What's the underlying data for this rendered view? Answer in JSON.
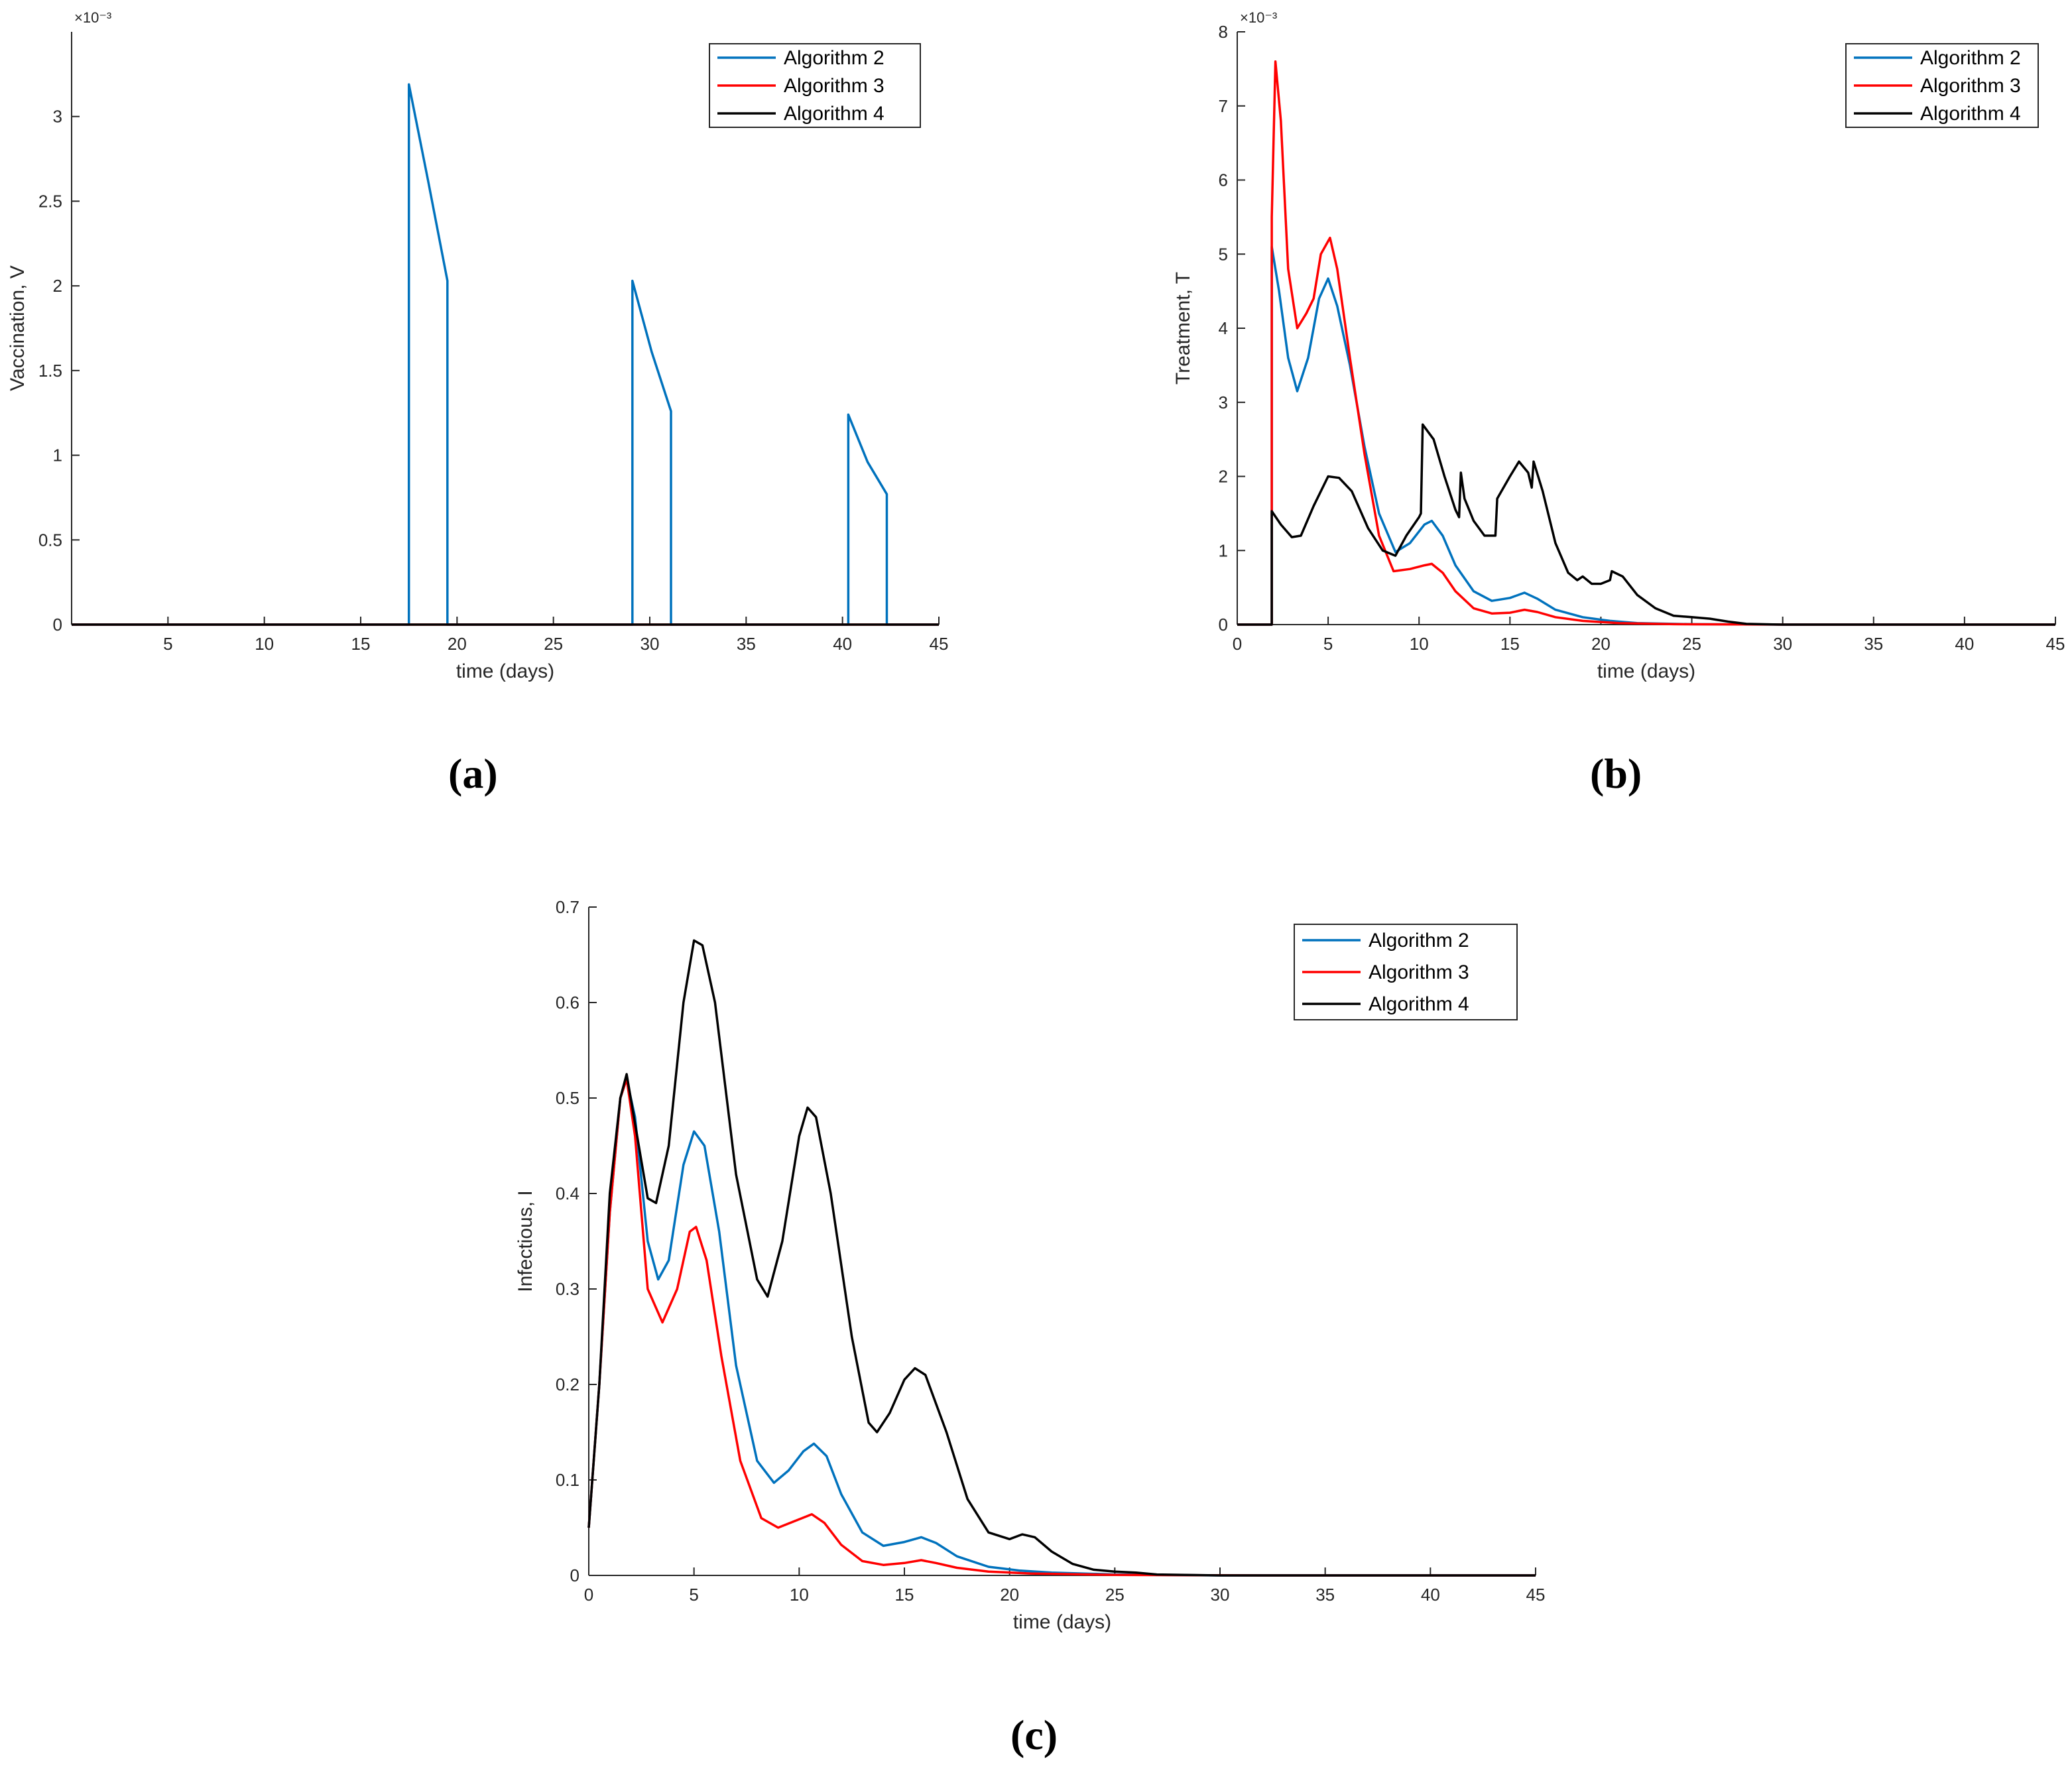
{
  "panel_labels": [
    "(a)",
    "(b)",
    "(c)"
  ],
  "colors": {
    "algorithm_2": "#0072BD",
    "algorithm_3": "#FF0000",
    "algorithm_4": "#000000",
    "axis": "#262626"
  },
  "chart_data": [
    {
      "id": "a",
      "type": "line",
      "xlabel": "time (days)",
      "ylabel": "Vaccination, V",
      "y_exponent": "×10⁻³",
      "xlim": [
        0,
        45
      ],
      "ylim": [
        0,
        0.0035
      ],
      "xticks": [
        5,
        10,
        15,
        20,
        25,
        30,
        35,
        40,
        45
      ],
      "yticks": [
        0,
        0.0005,
        0.001,
        0.0015,
        0.002,
        0.0025,
        0.003
      ],
      "ytick_labels": [
        "0",
        "0.5",
        "1",
        "1.5",
        "2",
        "2.5",
        "3"
      ],
      "legend_position": "top-right",
      "series": [
        {
          "name": "Algorithm 2",
          "color": "#0072BD",
          "points": [
            [
              0,
              0
            ],
            [
              17.5,
              0
            ],
            [
              17.5,
              0.00319
            ],
            [
              18.5,
              0.00262
            ],
            [
              19.5,
              0.00203
            ],
            [
              19.5,
              0
            ],
            [
              29.1,
              0
            ],
            [
              29.1,
              0.00203
            ],
            [
              30.1,
              0.00161
            ],
            [
              31.1,
              0.00126
            ],
            [
              31.1,
              0
            ],
            [
              40.3,
              0
            ],
            [
              40.3,
              0.00124
            ],
            [
              41.3,
              0.00096
            ],
            [
              42.3,
              0.00077
            ],
            [
              42.3,
              0
            ],
            [
              45,
              0
            ]
          ]
        },
        {
          "name": "Algorithm 3",
          "color": "#FF0000",
          "points": [
            [
              0,
              0
            ],
            [
              45,
              0
            ]
          ]
        },
        {
          "name": "Algorithm 4",
          "color": "#000000",
          "points": [
            [
              0,
              0
            ],
            [
              45,
              0
            ]
          ]
        }
      ]
    },
    {
      "id": "b",
      "type": "line",
      "xlabel": "time (days)",
      "ylabel": "Treatment, T",
      "y_exponent": "×10⁻³",
      "xlim": [
        0,
        45
      ],
      "ylim": [
        0,
        0.008
      ],
      "xticks": [
        0,
        5,
        10,
        15,
        20,
        25,
        30,
        35,
        40,
        45
      ],
      "yticks": [
        0,
        0.001,
        0.002,
        0.003,
        0.004,
        0.005,
        0.006,
        0.007,
        0.008
      ],
      "ytick_labels": [
        "0",
        "1",
        "2",
        "3",
        "4",
        "5",
        "6",
        "7",
        "8"
      ],
      "legend_position": "top-right",
      "series": [
        {
          "name": "Algorithm 2",
          "color": "#0072BD",
          "points": [
            [
              0,
              0
            ],
            [
              1.9,
              0
            ],
            [
              1.9,
              0.0051
            ],
            [
              2.3,
              0.0045
            ],
            [
              2.8,
              0.0036
            ],
            [
              3.3,
              0.00315
            ],
            [
              3.9,
              0.0036
            ],
            [
              4.5,
              0.0044
            ],
            [
              5.0,
              0.00467
            ],
            [
              5.5,
              0.0043
            ],
            [
              6.2,
              0.0035
            ],
            [
              7.0,
              0.0024
            ],
            [
              7.8,
              0.0015
            ],
            [
              8.7,
              0.00098
            ],
            [
              9.5,
              0.0011
            ],
            [
              10.3,
              0.00135
            ],
            [
              10.7,
              0.0014
            ],
            [
              11.3,
              0.0012
            ],
            [
              12.0,
              0.0008
            ],
            [
              13.0,
              0.00045
            ],
            [
              14.0,
              0.00032
            ],
            [
              15.0,
              0.00036
            ],
            [
              15.8,
              0.00043
            ],
            [
              16.5,
              0.00035
            ],
            [
              17.5,
              0.0002
            ],
            [
              19.0,
              0.0001
            ],
            [
              20.5,
              5e-05
            ],
            [
              22,
              2e-05
            ],
            [
              25,
              5e-06
            ],
            [
              30,
              0
            ],
            [
              45,
              0
            ]
          ]
        },
        {
          "name": "Algorithm 3",
          "color": "#FF0000",
          "points": [
            [
              0,
              0
            ],
            [
              1.9,
              0
            ],
            [
              1.9,
              0.0055
            ],
            [
              2.1,
              0.0076
            ],
            [
              2.4,
              0.0068
            ],
            [
              2.8,
              0.0048
            ],
            [
              3.3,
              0.004
            ],
            [
              3.8,
              0.0042
            ],
            [
              4.2,
              0.0044
            ],
            [
              4.6,
              0.005
            ],
            [
              5.1,
              0.00522
            ],
            [
              5.5,
              0.0048
            ],
            [
              6.2,
              0.0036
            ],
            [
              7.0,
              0.0023
            ],
            [
              7.8,
              0.0012
            ],
            [
              8.6,
              0.00072
            ],
            [
              9.5,
              0.00075
            ],
            [
              10.3,
              0.0008
            ],
            [
              10.7,
              0.00082
            ],
            [
              11.3,
              0.0007
            ],
            [
              12.0,
              0.00045
            ],
            [
              13.0,
              0.00022
            ],
            [
              14.0,
              0.00015
            ],
            [
              15.0,
              0.00016
            ],
            [
              15.8,
              0.0002
            ],
            [
              16.5,
              0.00017
            ],
            [
              17.5,
              0.0001
            ],
            [
              19.0,
              5e-05
            ],
            [
              21,
              2e-05
            ],
            [
              24,
              5e-06
            ],
            [
              30,
              0
            ],
            [
              45,
              0
            ]
          ]
        },
        {
          "name": "Algorithm 4",
          "color": "#000000",
          "points": [
            [
              0,
              0
            ],
            [
              1.9,
              0
            ],
            [
              1.9,
              0.00153
            ],
            [
              2.4,
              0.00135
            ],
            [
              3.0,
              0.00118
            ],
            [
              3.5,
              0.0012
            ],
            [
              4.2,
              0.0016
            ],
            [
              5.0,
              0.002
            ],
            [
              5.6,
              0.00198
            ],
            [
              6.3,
              0.0018
            ],
            [
              7.2,
              0.0013
            ],
            [
              8.0,
              0.001
            ],
            [
              8.7,
              0.00093
            ],
            [
              9.3,
              0.0012
            ],
            [
              10.0,
              0.00145
            ],
            [
              10.1,
              0.0015
            ],
            [
              10.2,
              0.0027
            ],
            [
              10.8,
              0.0025
            ],
            [
              11.4,
              0.002
            ],
            [
              12.0,
              0.00155
            ],
            [
              12.2,
              0.00145
            ],
            [
              12.3,
              0.00205
            ],
            [
              12.5,
              0.0017
            ],
            [
              13.0,
              0.0014
            ],
            [
              13.6,
              0.0012
            ],
            [
              14.2,
              0.0012
            ],
            [
              14.3,
              0.0017
            ],
            [
              15.0,
              0.002
            ],
            [
              15.5,
              0.0022
            ],
            [
              16.0,
              0.00205
            ],
            [
              16.2,
              0.00185
            ],
            [
              16.3,
              0.0022
            ],
            [
              16.8,
              0.0018
            ],
            [
              17.5,
              0.0011
            ],
            [
              18.2,
              0.0007
            ],
            [
              18.7,
              0.0006
            ],
            [
              19.0,
              0.00065
            ],
            [
              19.5,
              0.00055
            ],
            [
              20.0,
              0.00055
            ],
            [
              20.5,
              0.0006
            ],
            [
              20.6,
              0.00072
            ],
            [
              21.2,
              0.00065
            ],
            [
              22,
              0.0004
            ],
            [
              23,
              0.00022
            ],
            [
              24,
              0.00012
            ],
            [
              25,
              0.0001
            ],
            [
              26,
              8e-05
            ],
            [
              27,
              4e-05
            ],
            [
              28,
              1e-05
            ],
            [
              30,
              0
            ],
            [
              45,
              0
            ]
          ]
        }
      ]
    },
    {
      "id": "c",
      "type": "line",
      "xlabel": "time (days)",
      "ylabel": "Infectious, I",
      "xlim": [
        0,
        45
      ],
      "ylim": [
        0,
        0.7
      ],
      "xticks": [
        0,
        5,
        10,
        15,
        20,
        25,
        30,
        35,
        40,
        45
      ],
      "yticks": [
        0,
        0.1,
        0.2,
        0.3,
        0.4,
        0.5,
        0.6,
        0.7
      ],
      "ytick_labels": [
        "0",
        "0.1",
        "0.2",
        "0.3",
        "0.4",
        "0.5",
        "0.6",
        "0.7"
      ],
      "legend_position": "top-right",
      "series": [
        {
          "name": "Algorithm 2",
          "color": "#0072BD",
          "points": [
            [
              0,
              0.05
            ],
            [
              0.5,
              0.2
            ],
            [
              1.0,
              0.38
            ],
            [
              1.5,
              0.5
            ],
            [
              1.8,
              0.52
            ],
            [
              2.2,
              0.48
            ],
            [
              2.8,
              0.35
            ],
            [
              3.3,
              0.31
            ],
            [
              3.8,
              0.33
            ],
            [
              4.5,
              0.43
            ],
            [
              5.0,
              0.465
            ],
            [
              5.5,
              0.45
            ],
            [
              6.2,
              0.36
            ],
            [
              7.0,
              0.22
            ],
            [
              8.0,
              0.12
            ],
            [
              8.8,
              0.097
            ],
            [
              9.5,
              0.11
            ],
            [
              10.2,
              0.13
            ],
            [
              10.7,
              0.138
            ],
            [
              11.3,
              0.125
            ],
            [
              12.0,
              0.085
            ],
            [
              13.0,
              0.045
            ],
            [
              14.0,
              0.031
            ],
            [
              15.0,
              0.035
            ],
            [
              15.8,
              0.04
            ],
            [
              16.5,
              0.034
            ],
            [
              17.5,
              0.02
            ],
            [
              19.0,
              0.009
            ],
            [
              20.5,
              0.005
            ],
            [
              22,
              0.003
            ],
            [
              25,
              0.001
            ],
            [
              30,
              0
            ],
            [
              45,
              0
            ]
          ]
        },
        {
          "name": "Algorithm 3",
          "color": "#FF0000",
          "points": [
            [
              0,
              0.05
            ],
            [
              0.5,
              0.2
            ],
            [
              1.0,
              0.38
            ],
            [
              1.5,
              0.5
            ],
            [
              1.8,
              0.52
            ],
            [
              2.2,
              0.46
            ],
            [
              2.8,
              0.3
            ],
            [
              3.5,
              0.265
            ],
            [
              4.2,
              0.3
            ],
            [
              4.8,
              0.36
            ],
            [
              5.1,
              0.365
            ],
            [
              5.6,
              0.33
            ],
            [
              6.3,
              0.23
            ],
            [
              7.2,
              0.12
            ],
            [
              8.2,
              0.06
            ],
            [
              9.0,
              0.05
            ],
            [
              9.8,
              0.057
            ],
            [
              10.6,
              0.064
            ],
            [
              11.2,
              0.055
            ],
            [
              12.0,
              0.032
            ],
            [
              13.0,
              0.015
            ],
            [
              14.0,
              0.011
            ],
            [
              15.0,
              0.013
            ],
            [
              15.8,
              0.016
            ],
            [
              16.5,
              0.013
            ],
            [
              17.5,
              0.008
            ],
            [
              19,
              0.004
            ],
            [
              21,
              0.002
            ],
            [
              25,
              0.0005
            ],
            [
              32,
              0
            ],
            [
              45,
              0
            ]
          ]
        },
        {
          "name": "Algorithm 4",
          "color": "#000000",
          "points": [
            [
              0,
              0.05
            ],
            [
              0.5,
              0.2
            ],
            [
              1.0,
              0.4
            ],
            [
              1.5,
              0.5
            ],
            [
              1.8,
              0.525
            ],
            [
              2.3,
              0.46
            ],
            [
              2.8,
              0.395
            ],
            [
              3.2,
              0.39
            ],
            [
              3.8,
              0.45
            ],
            [
              4.5,
              0.6
            ],
            [
              5.0,
              0.665
            ],
            [
              5.4,
              0.66
            ],
            [
              6.0,
              0.6
            ],
            [
              7.0,
              0.42
            ],
            [
              8.0,
              0.31
            ],
            [
              8.5,
              0.292
            ],
            [
              9.2,
              0.35
            ],
            [
              10.0,
              0.46
            ],
            [
              10.4,
              0.49
            ],
            [
              10.8,
              0.48
            ],
            [
              11.5,
              0.4
            ],
            [
              12.5,
              0.25
            ],
            [
              13.3,
              0.16
            ],
            [
              13.7,
              0.15
            ],
            [
              14.3,
              0.17
            ],
            [
              15.0,
              0.205
            ],
            [
              15.5,
              0.217
            ],
            [
              16.0,
              0.21
            ],
            [
              17.0,
              0.15
            ],
            [
              18.0,
              0.08
            ],
            [
              19.0,
              0.045
            ],
            [
              20.0,
              0.038
            ],
            [
              20.6,
              0.043
            ],
            [
              21.2,
              0.04
            ],
            [
              22,
              0.025
            ],
            [
              23,
              0.012
            ],
            [
              24,
              0.006
            ],
            [
              25,
              0.004
            ],
            [
              26,
              0.003
            ],
            [
              27,
              0.001
            ],
            [
              30,
              0
            ],
            [
              45,
              0
            ]
          ]
        }
      ]
    }
  ]
}
